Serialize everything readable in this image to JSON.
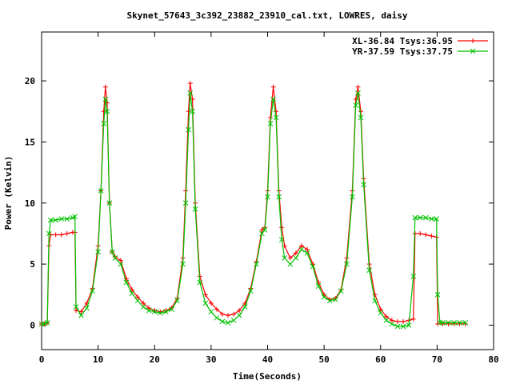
{
  "chart_data": {
    "type": "line",
    "title": "Skynet_57643_3c392_23882_23910_cal.txt, LOWRES, daisy",
    "xlabel": "Time(Seconds)",
    "ylabel": "Power (Kelvin)",
    "xlim": [
      0,
      80
    ],
    "ylim": [
      -2,
      24
    ],
    "xticks": [
      0,
      10,
      20,
      30,
      40,
      50,
      60,
      70,
      80
    ],
    "yticks": [
      0,
      5,
      10,
      15,
      20
    ],
    "grid": false,
    "legend_position": "top-right",
    "series": [
      {
        "name": "XL-36.84 Tsys:36.95",
        "color": "#ff0000",
        "marker": "plus",
        "points": [
          [
            0.0,
            0.1
          ],
          [
            0.5,
            0.1
          ],
          [
            1.0,
            0.2
          ],
          [
            1.3,
            6.5
          ],
          [
            1.6,
            7.4
          ],
          [
            2.5,
            7.4
          ],
          [
            3.5,
            7.4
          ],
          [
            4.5,
            7.5
          ],
          [
            5.5,
            7.6
          ],
          [
            5.9,
            7.6
          ],
          [
            6.1,
            1.2
          ],
          [
            7.0,
            1.1
          ],
          [
            8.0,
            1.8
          ],
          [
            9.0,
            3.0
          ],
          [
            10.0,
            6.5
          ],
          [
            10.5,
            11.0
          ],
          [
            11.0,
            17.5
          ],
          [
            11.3,
            19.5
          ],
          [
            11.6,
            18.2
          ],
          [
            12.0,
            10.0
          ],
          [
            12.5,
            6.0
          ],
          [
            13.0,
            5.6
          ],
          [
            14.0,
            5.3
          ],
          [
            15.0,
            3.8
          ],
          [
            16.0,
            2.9
          ],
          [
            17.0,
            2.3
          ],
          [
            18.0,
            1.8
          ],
          [
            19.0,
            1.4
          ],
          [
            20.0,
            1.2
          ],
          [
            21.0,
            1.1
          ],
          [
            22.0,
            1.2
          ],
          [
            23.0,
            1.4
          ],
          [
            24.0,
            2.2
          ],
          [
            25.0,
            5.5
          ],
          [
            25.5,
            11.0
          ],
          [
            26.0,
            17.5
          ],
          [
            26.3,
            19.8
          ],
          [
            26.7,
            18.5
          ],
          [
            27.2,
            10.0
          ],
          [
            28.0,
            4.0
          ],
          [
            29.0,
            2.5
          ],
          [
            30.0,
            1.8
          ],
          [
            31.0,
            1.3
          ],
          [
            32.0,
            0.9
          ],
          [
            33.0,
            0.8
          ],
          [
            34.0,
            0.9
          ],
          [
            35.0,
            1.2
          ],
          [
            36.0,
            1.8
          ],
          [
            37.0,
            3.0
          ],
          [
            38.0,
            5.2
          ],
          [
            39.0,
            7.8
          ],
          [
            39.5,
            8.0
          ],
          [
            40.0,
            11.0
          ],
          [
            40.5,
            17.0
          ],
          [
            41.0,
            19.5
          ],
          [
            41.5,
            17.5
          ],
          [
            42.0,
            11.0
          ],
          [
            42.5,
            8.0
          ],
          [
            43.0,
            6.5
          ],
          [
            44.0,
            5.5
          ],
          [
            45.0,
            5.9
          ],
          [
            46.0,
            6.5
          ],
          [
            47.0,
            6.2
          ],
          [
            48.0,
            5.0
          ],
          [
            49.0,
            3.5
          ],
          [
            50.0,
            2.5
          ],
          [
            51.0,
            2.1
          ],
          [
            52.0,
            2.2
          ],
          [
            53.0,
            2.9
          ],
          [
            54.0,
            5.5
          ],
          [
            55.0,
            11.0
          ],
          [
            55.6,
            18.5
          ],
          [
            56.0,
            19.5
          ],
          [
            56.5,
            17.5
          ],
          [
            57.0,
            12.0
          ],
          [
            58.0,
            5.0
          ],
          [
            59.0,
            2.5
          ],
          [
            60.0,
            1.3
          ],
          [
            61.0,
            0.7
          ],
          [
            62.0,
            0.4
          ],
          [
            63.0,
            0.3
          ],
          [
            64.0,
            0.3
          ],
          [
            65.0,
            0.4
          ],
          [
            65.8,
            0.5
          ],
          [
            66.1,
            7.5
          ],
          [
            67.0,
            7.5
          ],
          [
            68.0,
            7.4
          ],
          [
            69.0,
            7.3
          ],
          [
            69.9,
            7.2
          ],
          [
            70.1,
            0.1
          ],
          [
            71.0,
            0.1
          ],
          [
            72.0,
            0.1
          ],
          [
            73.0,
            0.1
          ],
          [
            74.0,
            0.1
          ],
          [
            75.0,
            0.1
          ]
        ]
      },
      {
        "name": "YR-37.59 Tsys:37.75",
        "color": "#00c000",
        "marker": "cross",
        "points": [
          [
            0.0,
            0.1
          ],
          [
            0.5,
            0.1
          ],
          [
            1.0,
            0.2
          ],
          [
            1.3,
            7.5
          ],
          [
            1.6,
            8.6
          ],
          [
            2.5,
            8.6
          ],
          [
            3.5,
            8.7
          ],
          [
            4.5,
            8.7
          ],
          [
            5.5,
            8.8
          ],
          [
            5.9,
            8.9
          ],
          [
            6.1,
            1.5
          ],
          [
            7.0,
            0.8
          ],
          [
            8.0,
            1.4
          ],
          [
            9.0,
            2.8
          ],
          [
            10.0,
            6.0
          ],
          [
            10.5,
            11.0
          ],
          [
            11.0,
            16.5
          ],
          [
            11.3,
            18.5
          ],
          [
            11.6,
            17.5
          ],
          [
            12.0,
            10.0
          ],
          [
            12.5,
            6.0
          ],
          [
            13.0,
            5.5
          ],
          [
            14.0,
            5.0
          ],
          [
            15.0,
            3.5
          ],
          [
            16.0,
            2.6
          ],
          [
            17.0,
            2.0
          ],
          [
            18.0,
            1.5
          ],
          [
            19.0,
            1.2
          ],
          [
            20.0,
            1.1
          ],
          [
            21.0,
            1.0
          ],
          [
            22.0,
            1.1
          ],
          [
            23.0,
            1.3
          ],
          [
            24.0,
            2.0
          ],
          [
            25.0,
            5.0
          ],
          [
            25.5,
            10.0
          ],
          [
            26.0,
            16.0
          ],
          [
            26.3,
            19.0
          ],
          [
            26.7,
            17.5
          ],
          [
            27.2,
            9.5
          ],
          [
            28.0,
            3.5
          ],
          [
            29.0,
            1.8
          ],
          [
            30.0,
            1.1
          ],
          [
            31.0,
            0.6
          ],
          [
            32.0,
            0.3
          ],
          [
            33.0,
            0.2
          ],
          [
            34.0,
            0.4
          ],
          [
            35.0,
            0.8
          ],
          [
            36.0,
            1.5
          ],
          [
            37.0,
            2.8
          ],
          [
            38.0,
            5.0
          ],
          [
            39.0,
            7.5
          ],
          [
            39.5,
            7.8
          ],
          [
            40.0,
            10.5
          ],
          [
            40.5,
            16.5
          ],
          [
            41.0,
            18.5
          ],
          [
            41.5,
            17.0
          ],
          [
            42.0,
            10.5
          ],
          [
            42.5,
            7.0
          ],
          [
            43.0,
            5.5
          ],
          [
            44.0,
            5.0
          ],
          [
            45.0,
            5.5
          ],
          [
            46.0,
            6.2
          ],
          [
            47.0,
            5.9
          ],
          [
            48.0,
            4.8
          ],
          [
            49.0,
            3.2
          ],
          [
            50.0,
            2.3
          ],
          [
            51.0,
            2.0
          ],
          [
            52.0,
            2.1
          ],
          [
            53.0,
            2.8
          ],
          [
            54.0,
            5.0
          ],
          [
            55.0,
            10.5
          ],
          [
            55.6,
            18.0
          ],
          [
            56.0,
            19.0
          ],
          [
            56.5,
            17.0
          ],
          [
            57.0,
            11.5
          ],
          [
            58.0,
            4.5
          ],
          [
            59.0,
            2.0
          ],
          [
            60.0,
            1.0
          ],
          [
            61.0,
            0.4
          ],
          [
            62.0,
            0.1
          ],
          [
            63.0,
            -0.1
          ],
          [
            64.0,
            -0.1
          ],
          [
            65.0,
            0.0
          ],
          [
            65.8,
            4.0
          ],
          [
            66.1,
            8.8
          ],
          [
            67.0,
            8.8
          ],
          [
            68.0,
            8.8
          ],
          [
            69.0,
            8.7
          ],
          [
            69.9,
            8.7
          ],
          [
            70.1,
            2.5
          ],
          [
            70.5,
            0.2
          ],
          [
            71.0,
            0.2
          ],
          [
            72.0,
            0.2
          ],
          [
            73.0,
            0.2
          ],
          [
            74.0,
            0.2
          ],
          [
            75.0,
            0.2
          ]
        ]
      }
    ]
  }
}
